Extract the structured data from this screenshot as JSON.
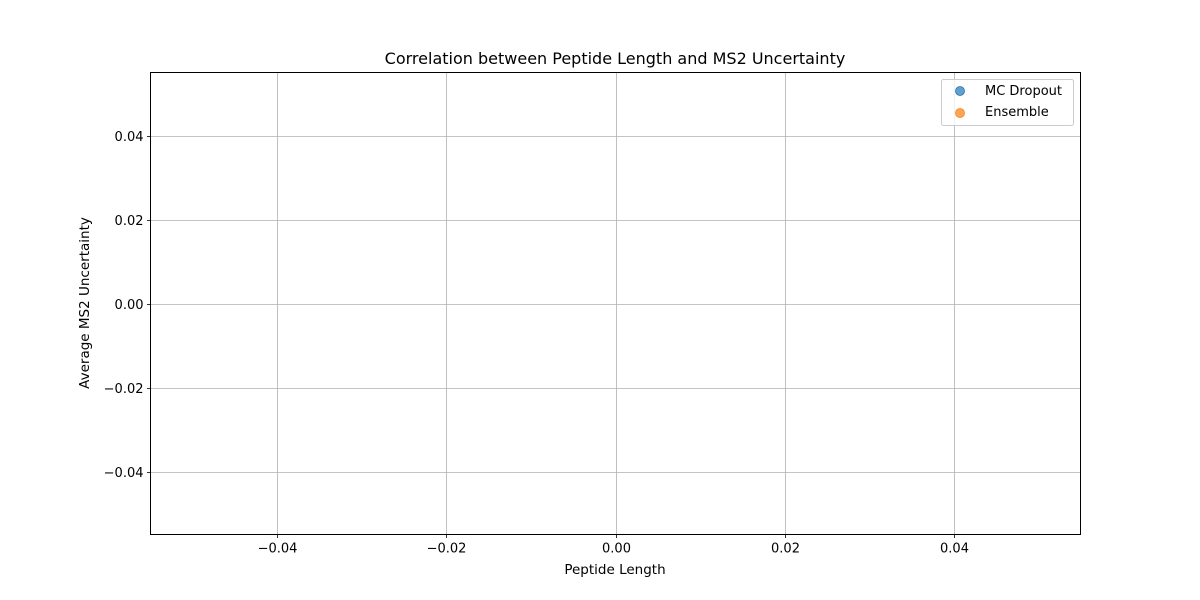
{
  "chart_data": {
    "type": "scatter",
    "title": "Correlation between Peptide Length and MS2 Uncertainty",
    "xlabel": "Peptide Length",
    "ylabel": "Average MS2 Uncertainty",
    "xlim": [
      -0.055,
      0.055
    ],
    "ylim": [
      -0.055,
      0.055
    ],
    "xticks": [
      -0.04,
      -0.02,
      0.0,
      0.02,
      0.04
    ],
    "yticks": [
      -0.04,
      -0.02,
      0.0,
      0.02,
      0.04
    ],
    "xtick_labels": [
      "−0.04",
      "−0.02",
      "0.00",
      "0.02",
      "0.04"
    ],
    "ytick_labels": [
      "−0.04",
      "−0.02",
      "0.00",
      "0.02",
      "0.04"
    ],
    "grid": true,
    "legend_position": "top-right",
    "series": [
      {
        "name": "MC Dropout",
        "color": "#1f77b4",
        "x": [],
        "y": []
      },
      {
        "name": "Ensemble",
        "color": "#ff7f0e",
        "x": [],
        "y": []
      }
    ]
  }
}
